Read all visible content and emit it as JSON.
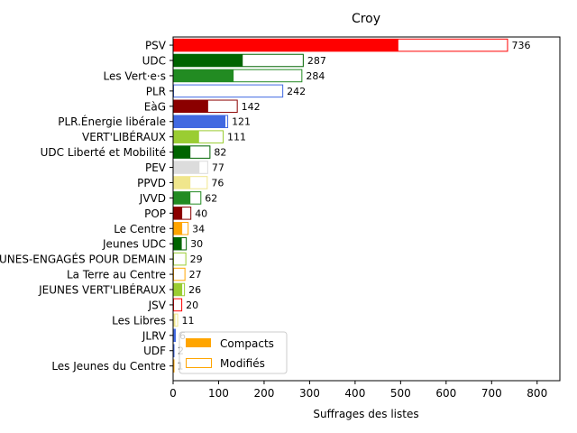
{
  "chart_data": {
    "type": "bar",
    "orientation": "horizontal",
    "title": "Croy",
    "xlabel": "Suffrages des listes",
    "ylabel": "",
    "xlim": [
      0,
      850
    ],
    "xticks": [
      0,
      100,
      200,
      300,
      400,
      500,
      600,
      700,
      800
    ],
    "grid": false,
    "legend_position": "bottom-left",
    "legend": [
      {
        "label": "Compacts",
        "style": "filled",
        "color": "#ffa500"
      },
      {
        "label": "Modifiés",
        "style": "outline",
        "color": "#ffa500"
      }
    ],
    "categories": [
      {
        "name": "PSV",
        "total": 736,
        "compacts": 495,
        "color": "#ff0000"
      },
      {
        "name": "UDC",
        "total": 287,
        "compacts": 153,
        "color": "#006400"
      },
      {
        "name": "Les Vert·e·s",
        "total": 284,
        "compacts": 133,
        "color": "#228b22"
      },
      {
        "name": "PLR",
        "total": 242,
        "compacts": 0,
        "color": "#4169e1"
      },
      {
        "name": "EàG",
        "total": 142,
        "compacts": 77,
        "color": "#8b0000"
      },
      {
        "name": "PLR.Énergie libérale",
        "total": 121,
        "compacts": 115,
        "color": "#4169e1"
      },
      {
        "name": "VERT'LIBÉRAUX",
        "total": 111,
        "compacts": 57,
        "color": "#9acd32"
      },
      {
        "name": "UDC Liberté et Mobilité",
        "total": 82,
        "compacts": 38,
        "color": "#006400"
      },
      {
        "name": "PEV",
        "total": 77,
        "compacts": 58,
        "color": "#dcdcdc"
      },
      {
        "name": "PPVD",
        "total": 76,
        "compacts": 38,
        "color": "#f0e68c"
      },
      {
        "name": "JVVD",
        "total": 62,
        "compacts": 38,
        "color": "#228b22"
      },
      {
        "name": "POP",
        "total": 40,
        "compacts": 20,
        "color": "#8b0000"
      },
      {
        "name": "Le Centre",
        "total": 34,
        "compacts": 20,
        "color": "#ffa500"
      },
      {
        "name": "Jeunes UDC",
        "total": 30,
        "compacts": 19,
        "color": "#006400"
      },
      {
        "name": "JEUNES-ENGAGÉS POUR DEMAIN",
        "total": 29,
        "compacts": 0,
        "color": "#9acd32"
      },
      {
        "name": "La Terre au Centre",
        "total": 27,
        "compacts": 0,
        "color": "#ffa500"
      },
      {
        "name": "JEUNES VERT'LIBÉRAUX",
        "total": 26,
        "compacts": 20,
        "color": "#9acd32"
      },
      {
        "name": "JSV",
        "total": 20,
        "compacts": 0,
        "color": "#ff0000"
      },
      {
        "name": "Les Libres",
        "total": 11,
        "compacts": 5,
        "color": "#f0e68c"
      },
      {
        "name": "JLRV",
        "total": 6,
        "compacts": 4,
        "color": "#4169e1"
      },
      {
        "name": "UDF",
        "total": 2,
        "compacts": 1,
        "color": "#4169e1"
      },
      {
        "name": "Les Jeunes du Centre",
        "total": 1,
        "compacts": 0,
        "color": "#ffa500"
      }
    ]
  }
}
